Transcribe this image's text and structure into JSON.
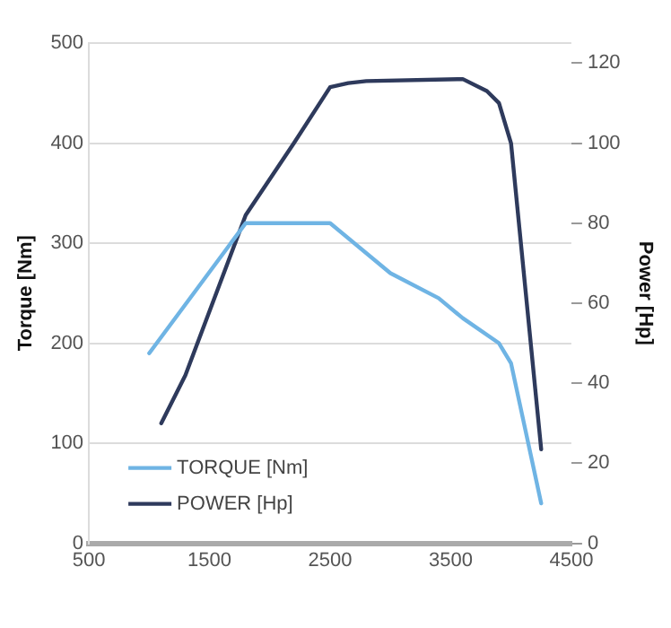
{
  "chart_data": {
    "type": "line",
    "ylabel": "Torque [Nm]",
    "y2label": "Power [Hp]",
    "xlim": [
      500,
      4500
    ],
    "xticks": [
      500,
      1500,
      2500,
      3500,
      4500
    ],
    "ylim": [
      0,
      500
    ],
    "yticks": [
      0,
      100,
      200,
      300,
      400,
      500
    ],
    "y2lim": [
      0,
      125
    ],
    "y2ticks": [
      0,
      20,
      40,
      60,
      80,
      100,
      120
    ],
    "grid": "y",
    "legend": "bottom left",
    "marker": "none",
    "line_style": "solid",
    "series": [
      {
        "name": "TORQUE [Nm]",
        "color": "#6fb4e4",
        "x": [
          1000,
          1800,
          2500,
          3000,
          3400,
          3600,
          3900,
          4000,
          4250
        ],
        "values": [
          190,
          320,
          320,
          270,
          245,
          225,
          200,
          180,
          40
        ]
      },
      {
        "name": "POWER [Hp]",
        "color": "#2e3a5c",
        "axis": "y2",
        "x": [
          1100,
          1300,
          1800,
          2200,
          2500,
          2650,
          2800,
          3600,
          3800,
          3900,
          4000,
          4250
        ],
        "values": [
          30,
          42,
          82,
          100,
          114,
          115,
          115.5,
          116,
          113,
          110,
          100,
          23.5
        ]
      }
    ]
  }
}
